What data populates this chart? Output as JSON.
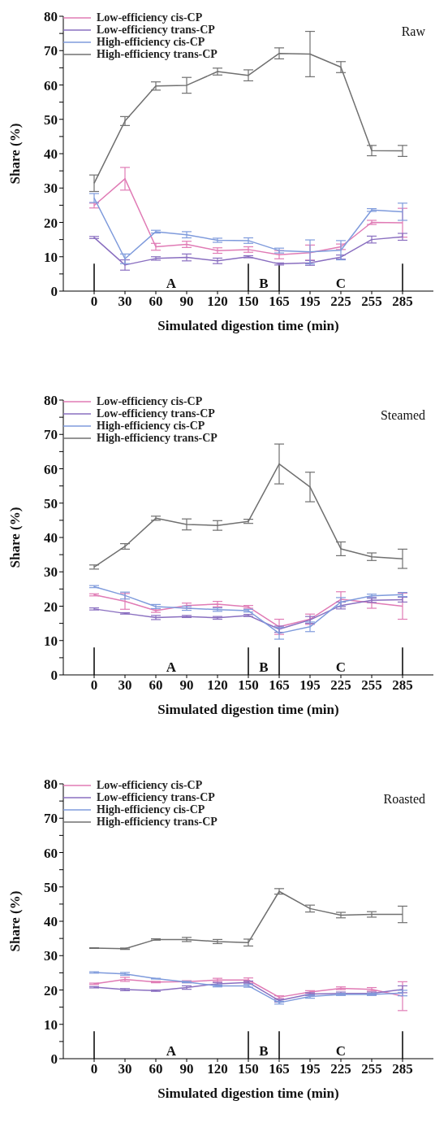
{
  "chart_data": [
    {
      "type": "line",
      "title": "Raw",
      "xlabel": "Simulated digestion time (min)",
      "ylabel": "Share (%)",
      "categories": [
        "0",
        "30",
        "60",
        "90",
        "120",
        "150",
        "165",
        "195",
        "225",
        "255",
        "285"
      ],
      "ylim": [
        0,
        80
      ],
      "yticks": [
        0,
        {
          "value": 5,
          "label": null
        },
        10,
        {
          "value": 15,
          "label": null
        },
        20,
        {
          "value": 25,
          "label": null
        },
        30,
        {
          "value": 35,
          "label": null
        },
        40,
        {
          "value": 45,
          "label": null
        },
        50,
        {
          "value": 55,
          "label": null
        },
        60,
        {
          "value": 65,
          "label": null
        },
        70,
        {
          "value": 75,
          "label": null
        },
        80
      ],
      "legend": "top left",
      "marker": "none",
      "line_style": "solid",
      "grid": false,
      "ref_lines": [
        {
          "axis": "x",
          "value": "0",
          "label": null
        },
        {
          "axis": "x",
          "value": "150",
          "label": null
        },
        {
          "axis": "x",
          "value": "165",
          "label": null
        },
        {
          "axis": "x",
          "value": "285",
          "label": null
        }
      ],
      "annotations": [
        "A",
        "B",
        "C"
      ],
      "series": [
        {
          "name": "Low-efficiency cis-CP",
          "color": "#e07bb5",
          "values": [
            24.9,
            32.7,
            12.9,
            13.6,
            11.8,
            12.1,
            10.6,
            11.2,
            12.9,
            20.0,
            19.9
          ],
          "errors": [
            0.7,
            3.3,
            1.0,
            0.9,
            0.8,
            0.8,
            1.2,
            2.2,
            0.8,
            0.6,
            4.2
          ]
        },
        {
          "name": "Low-efficiency trans-CP",
          "color": "#8a6fc0",
          "values": [
            15.6,
            7.6,
            9.5,
            9.8,
            8.8,
            10.0,
            7.9,
            8.2,
            9.9,
            15.0,
            15.8
          ],
          "errors": [
            0.3,
            1.5,
            0.5,
            1.0,
            0.8,
            0.3,
            0.3,
            0.7,
            0.6,
            1.0,
            1.0
          ]
        },
        {
          "name": "High-efficiency cis-CP",
          "color": "#7f9bdc",
          "values": [
            27.1,
            9.4,
            17.3,
            16.4,
            14.8,
            14.7,
            11.8,
            11.4,
            11.9,
            23.6,
            23.1
          ],
          "errors": [
            1.3,
            1.4,
            0.4,
            0.9,
            0.6,
            0.8,
            0.7,
            3.5,
            2.8,
            0.4,
            2.5
          ]
        },
        {
          "name": "High-efficiency trans-CP",
          "color": "#707070",
          "values": [
            31.4,
            49.5,
            59.7,
            59.9,
            63.9,
            62.8,
            69.2,
            69.0,
            65.2,
            40.9,
            40.8
          ],
          "errors": [
            2.4,
            1.3,
            1.2,
            2.3,
            1.0,
            1.6,
            1.6,
            6.6,
            1.6,
            1.5,
            1.6
          ]
        }
      ]
    },
    {
      "type": "line",
      "title": "Steamed",
      "xlabel": "Simulated digestion time (min)",
      "ylabel": "Share (%)",
      "categories": [
        "0",
        "30",
        "60",
        "90",
        "120",
        "150",
        "165",
        "195",
        "225",
        "255",
        "285"
      ],
      "ylim": [
        0,
        80
      ],
      "yticks": [
        0,
        {
          "value": 5,
          "label": null
        },
        10,
        {
          "value": 15,
          "label": null
        },
        20,
        {
          "value": 25,
          "label": null
        },
        30,
        {
          "value": 35,
          "label": null
        },
        40,
        {
          "value": 45,
          "label": null
        },
        50,
        {
          "value": 55,
          "label": null
        },
        60,
        {
          "value": 65,
          "label": null
        },
        70,
        {
          "value": 75,
          "label": null
        },
        80
      ],
      "legend": "top left",
      "marker": "none",
      "line_style": "solid",
      "grid": false,
      "ref_lines": [
        {
          "axis": "x",
          "value": "0",
          "label": null
        },
        {
          "axis": "x",
          "value": "150",
          "label": null
        },
        {
          "axis": "x",
          "value": "165",
          "label": null
        },
        {
          "axis": "x",
          "value": "285",
          "label": null
        }
      ],
      "annotations": [
        "A",
        "B",
        "C"
      ],
      "series": [
        {
          "name": "Low-efficiency cis-CP",
          "color": "#e07bb5",
          "values": [
            23.3,
            21.4,
            18.7,
            20.2,
            20.6,
            19.8,
            14.0,
            16.2,
            22.0,
            21.0,
            20.0
          ],
          "errors": [
            0.3,
            2.3,
            0.5,
            0.7,
            0.8,
            0.4,
            2.2,
            1.5,
            2.2,
            1.6,
            3.8
          ]
        },
        {
          "name": "Low-efficiency trans-CP",
          "color": "#8a6fc0",
          "values": [
            19.2,
            17.9,
            16.7,
            17.0,
            16.6,
            17.3,
            13.3,
            16.0,
            20.2,
            21.7,
            21.9
          ],
          "errors": [
            0.3,
            0.2,
            0.6,
            0.3,
            0.4,
            0.3,
            0.9,
            1.0,
            1.0,
            0.6,
            0.7
          ]
        },
        {
          "name": "High-efficiency cis-CP",
          "color": "#7f9bdc",
          "values": [
            25.7,
            23.1,
            19.9,
            19.4,
            19.0,
            18.7,
            12.1,
            14.0,
            21.2,
            23.0,
            23.4
          ],
          "errors": [
            0.3,
            1.0,
            0.6,
            0.6,
            0.5,
            0.4,
            1.7,
            1.4,
            1.3,
            0.5,
            0.6
          ]
        },
        {
          "name": "High-efficiency trans-CP",
          "color": "#707070",
          "values": [
            31.4,
            37.4,
            45.6,
            43.8,
            43.5,
            44.7,
            61.4,
            54.7,
            36.7,
            34.4,
            33.8
          ],
          "errors": [
            0.6,
            0.8,
            0.6,
            1.6,
            1.4,
            0.6,
            5.8,
            4.3,
            2.0,
            1.1,
            2.8
          ]
        }
      ]
    },
    {
      "type": "line",
      "title": "Roasted",
      "xlabel": "Simulated digestion time (min)",
      "ylabel": "Share (%)",
      "categories": [
        "0",
        "30",
        "60",
        "90",
        "120",
        "150",
        "165",
        "195",
        "225",
        "255",
        "285"
      ],
      "ylim": [
        0,
        80
      ],
      "yticks": [
        0,
        {
          "value": 5,
          "label": null
        },
        10,
        {
          "value": 15,
          "label": null
        },
        20,
        {
          "value": 25,
          "label": null
        },
        30,
        {
          "value": 35,
          "label": null
        },
        40,
        {
          "value": 45,
          "label": null
        },
        50,
        {
          "value": 55,
          "label": null
        },
        60,
        {
          "value": 65,
          "label": null
        },
        70,
        {
          "value": 75,
          "label": null
        },
        80
      ],
      "legend": "top left",
      "marker": "none",
      "line_style": "solid",
      "grid": false,
      "ref_lines": [
        {
          "axis": "x",
          "value": "0",
          "label": null
        },
        {
          "axis": "x",
          "value": "150",
          "label": null
        },
        {
          "axis": "x",
          "value": "165",
          "label": null
        },
        {
          "axis": "x",
          "value": "285",
          "label": null
        }
      ],
      "annotations": [
        "A",
        "B",
        "C"
      ],
      "series": [
        {
          "name": "Low-efficiency cis-CP",
          "color": "#e07bb5",
          "values": [
            21.8,
            23.1,
            22.3,
            22.4,
            22.9,
            22.9,
            17.9,
            19.4,
            20.5,
            20.2,
            18.2
          ],
          "errors": [
            0.2,
            0.6,
            0.2,
            0.3,
            0.5,
            0.6,
            0.4,
            0.4,
            0.4,
            0.5,
            4.2
          ]
        },
        {
          "name": "Low-efficiency trans-CP",
          "color": "#8a6fc0",
          "values": [
            20.8,
            20.1,
            19.8,
            20.7,
            21.8,
            22.2,
            16.9,
            18.8,
            19.0,
            19.0,
            20.2
          ],
          "errors": [
            0.2,
            0.3,
            0.2,
            0.5,
            0.4,
            0.4,
            0.4,
            0.4,
            0.4,
            0.4,
            1.0
          ]
        },
        {
          "name": "High-efficiency cis-CP",
          "color": "#7f9bdc",
          "values": [
            25.1,
            24.7,
            23.3,
            22.3,
            21.2,
            21.2,
            16.3,
            18.1,
            18.7,
            18.7,
            19.1
          ],
          "errors": [
            0.2,
            0.4,
            0.1,
            0.2,
            0.3,
            0.4,
            0.4,
            0.5,
            0.3,
            0.3,
            0.8
          ]
        },
        {
          "name": "High-efficiency trans-CP",
          "color": "#707070",
          "values": [
            32.2,
            32.0,
            34.7,
            34.7,
            34.1,
            33.8,
            48.7,
            43.7,
            41.8,
            42.0,
            42.0
          ],
          "errors": [
            0.1,
            0.2,
            0.2,
            0.6,
            0.6,
            1.0,
            0.8,
            1.0,
            0.8,
            0.8,
            2.4
          ]
        }
      ]
    }
  ]
}
